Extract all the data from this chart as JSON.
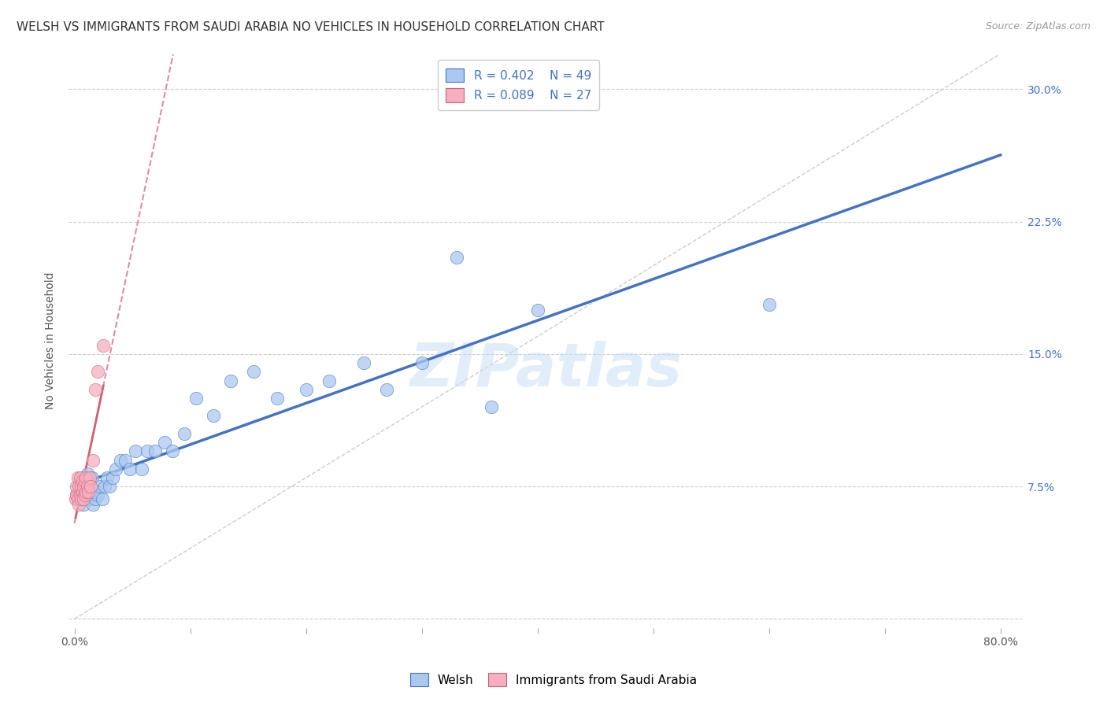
{
  "title": "WELSH VS IMMIGRANTS FROM SAUDI ARABIA NO VEHICLES IN HOUSEHOLD CORRELATION CHART",
  "source": "Source: ZipAtlas.com",
  "ylabel": "No Vehicles in Household",
  "xlim": [
    -0.005,
    0.82
  ],
  "ylim": [
    -0.005,
    0.32
  ],
  "xtick_pos": [
    0.0,
    0.1,
    0.2,
    0.3,
    0.4,
    0.5,
    0.6,
    0.7,
    0.8
  ],
  "xtick_labels": [
    "0.0%",
    "",
    "",
    "",
    "",
    "",
    "",
    "",
    "80.0%"
  ],
  "ytick_pos": [
    0.0,
    0.075,
    0.15,
    0.225,
    0.3
  ],
  "ytick_labels": [
    "",
    "7.5%",
    "15.0%",
    "22.5%",
    "30.0%"
  ],
  "welsh_R": 0.402,
  "welsh_N": 49,
  "saudi_R": 0.089,
  "saudi_N": 27,
  "welsh_color": "#aac8f0",
  "welsh_line_color": "#4472c4",
  "saudi_color": "#f5afc0",
  "saudi_line_color": "#d06070",
  "ref_line_color": "#cccccc",
  "watermark": "ZIPatlas",
  "background_color": "#ffffff",
  "grid_color": "#cccccc",
  "title_fontsize": 11,
  "axis_label_fontsize": 10,
  "tick_fontsize": 10,
  "legend_fontsize": 11,
  "welsh_x": [
    0.002,
    0.004,
    0.005,
    0.006,
    0.007,
    0.008,
    0.009,
    0.01,
    0.011,
    0.012,
    0.013,
    0.014,
    0.015,
    0.016,
    0.017,
    0.018,
    0.019,
    0.02,
    0.022,
    0.024,
    0.026,
    0.028,
    0.03,
    0.033,
    0.036,
    0.04,
    0.044,
    0.048,
    0.053,
    0.058,
    0.063,
    0.07,
    0.078,
    0.085,
    0.095,
    0.105,
    0.12,
    0.135,
    0.155,
    0.175,
    0.2,
    0.22,
    0.25,
    0.27,
    0.3,
    0.33,
    0.36,
    0.4,
    0.6
  ],
  "welsh_y": [
    0.07,
    0.075,
    0.068,
    0.08,
    0.072,
    0.065,
    0.078,
    0.075,
    0.082,
    0.07,
    0.068,
    0.075,
    0.08,
    0.065,
    0.073,
    0.068,
    0.072,
    0.07,
    0.075,
    0.068,
    0.075,
    0.08,
    0.075,
    0.08,
    0.085,
    0.09,
    0.09,
    0.085,
    0.095,
    0.085,
    0.095,
    0.095,
    0.1,
    0.095,
    0.105,
    0.125,
    0.115,
    0.135,
    0.14,
    0.125,
    0.13,
    0.135,
    0.145,
    0.13,
    0.145,
    0.205,
    0.12,
    0.175,
    0.178
  ],
  "saudi_x": [
    0.001,
    0.002,
    0.002,
    0.003,
    0.003,
    0.004,
    0.004,
    0.005,
    0.005,
    0.006,
    0.006,
    0.007,
    0.007,
    0.008,
    0.008,
    0.009,
    0.009,
    0.01,
    0.01,
    0.011,
    0.012,
    0.013,
    0.014,
    0.016,
    0.018,
    0.02,
    0.025
  ],
  "saudi_y": [
    0.068,
    0.07,
    0.075,
    0.068,
    0.08,
    0.065,
    0.075,
    0.07,
    0.08,
    0.068,
    0.075,
    0.072,
    0.078,
    0.068,
    0.075,
    0.07,
    0.078,
    0.072,
    0.08,
    0.075,
    0.072,
    0.08,
    0.075,
    0.09,
    0.13,
    0.14,
    0.155
  ]
}
